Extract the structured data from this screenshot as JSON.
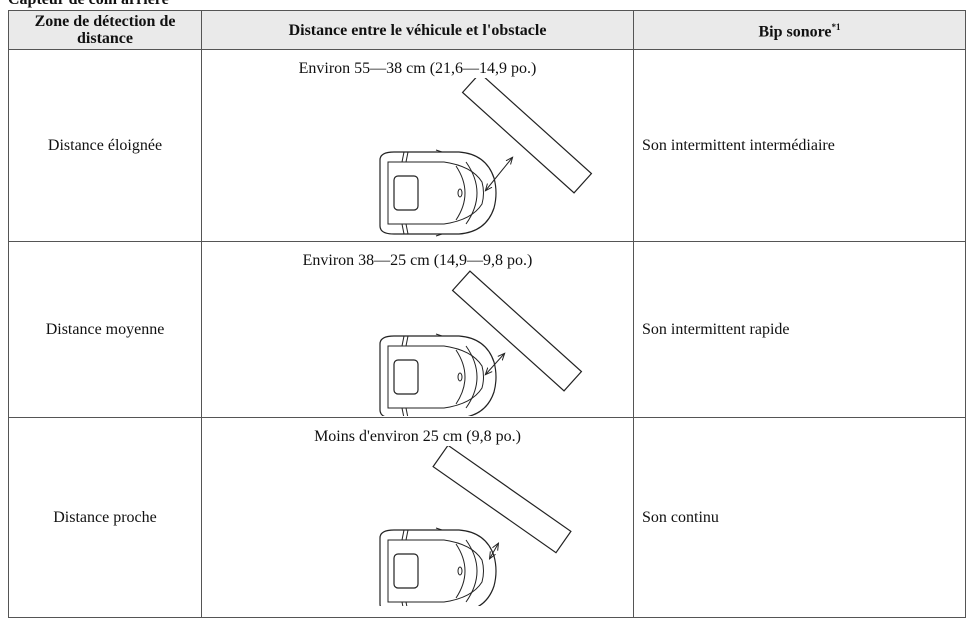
{
  "header": {
    "title": "Capteur de coin arrière"
  },
  "table": {
    "headers": [
      "Zone de détection de distance",
      "Distance entre le véhicule et l'obstacle",
      "Bip sonore"
    ],
    "header_note": "*1",
    "rows": [
      [
        "Distance éloignée",
        "Environ 55—38 cm (21,6—14,9 po.)",
        "Son intermittent intermédiaire"
      ],
      [
        "Distance moyenne",
        "Environ 38—25 cm (14,9—9,8 po.)",
        "Son intermittent rapide"
      ],
      [
        "Distance proche",
        "Moins d'environ 25 cm (9,8 po.)",
        "Son continu"
      ]
    ]
  }
}
